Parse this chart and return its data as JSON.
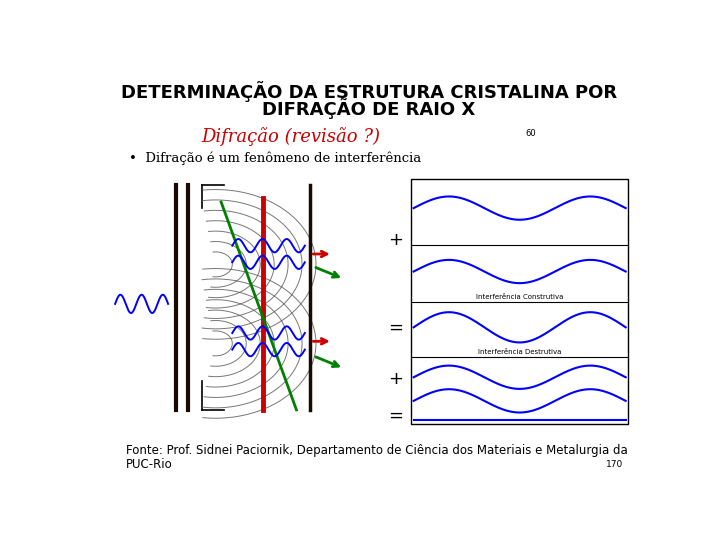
{
  "title_line1": "DETERMINAÇÃO DA ESTRUTURA CRISTALINA POR",
  "title_line2": "DIFRAÇÃO DE RAIO X",
  "subtitle": "Difração (revisão ?)",
  "subtitle_color": "#cc0000",
  "page_number": "60",
  "bullet_text": "Difração é um fenômeno de interferência",
  "footer_line1": "Fonte: Prof. Sidnei Paciornik, Departamento de Ciência dos Materiais e Metalurgia da",
  "footer_line2": "PUC-Rio",
  "footer_number": "170",
  "bg_color": "#ffffff",
  "title_fontsize": 13,
  "subtitle_fontsize": 13,
  "bullet_fontsize": 9.5,
  "footer_fontsize": 8.5
}
